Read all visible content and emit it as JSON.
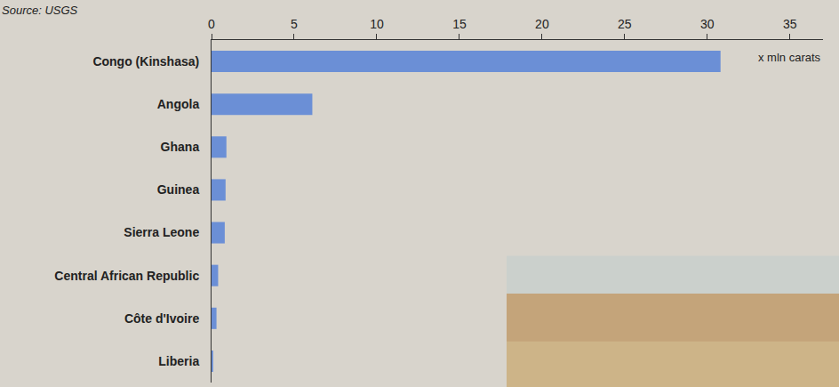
{
  "chart_data": {
    "type": "bar",
    "orientation": "horizontal",
    "subtitle": "Source: USGS",
    "xlabel": "x mln carats",
    "categories": [
      "Congo (Kinshasa)",
      "Angola",
      "Ghana",
      "Guinea",
      "Sierra Leone",
      "Central African Republic",
      "Côte d'Ivoire",
      "Liberia"
    ],
    "values": [
      30.8,
      6.1,
      0.9,
      0.85,
      0.8,
      0.4,
      0.3,
      0.1
    ],
    "color": "#6b8fd6",
    "xlim": [
      0,
      37
    ],
    "xticks": [
      0,
      5,
      10,
      15,
      20,
      25,
      30,
      35
    ],
    "grid": false
  }
}
